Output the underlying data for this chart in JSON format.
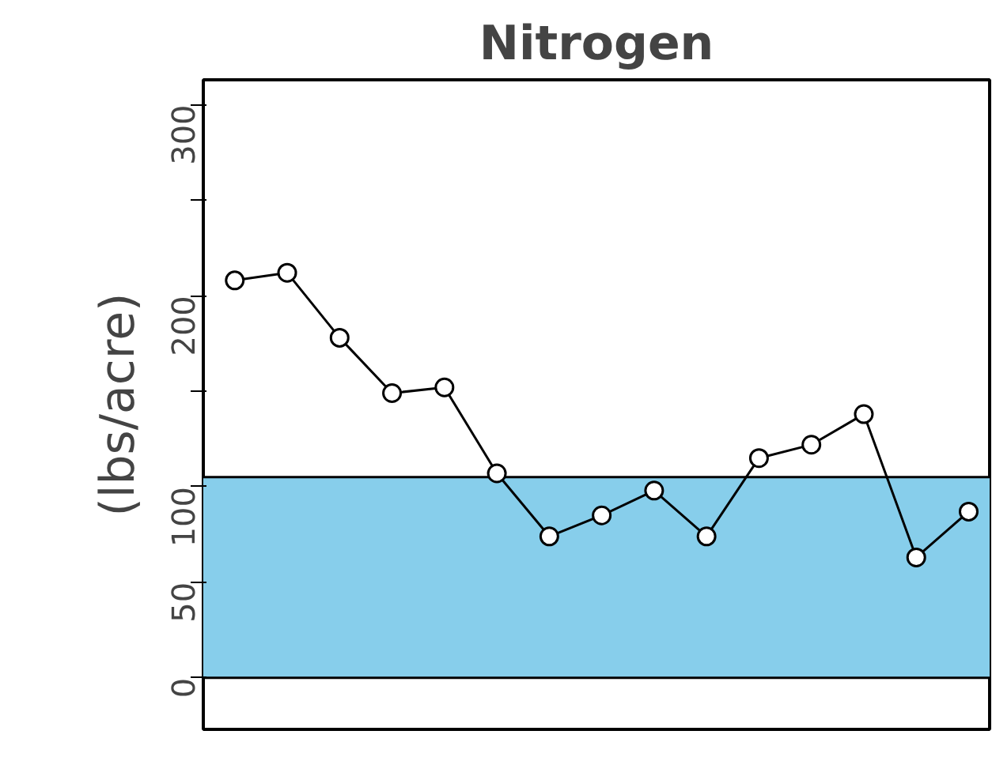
{
  "chart_data": {
    "type": "line",
    "title": "Nitrogen",
    "ylabel": "(lbs/acre)",
    "categories": [
      null,
      null,
      null,
      null,
      null,
      null,
      null,
      null,
      null,
      null,
      null,
      null,
      null,
      null,
      null
    ],
    "series": [
      {
        "color": "#000000",
        "values": [
          208,
          212,
          178,
          149,
          152,
          107,
          74,
          85,
          98,
          74,
          115,
          122,
          138,
          63,
          87
        ]
      }
    ],
    "ylim": [
      -27,
      313
    ],
    "yticks": [
      0,
      50,
      100,
      {
        "value": 150,
        "label": null
      },
      200,
      {
        "value": 250,
        "label": null
      },
      300
    ],
    "bands": [
      {
        "axis": "y",
        "from": 0,
        "to": 105,
        "color": "#87ceeb"
      }
    ],
    "marker": "circle",
    "line_style": "solid",
    "tick_labels": "y"
  }
}
